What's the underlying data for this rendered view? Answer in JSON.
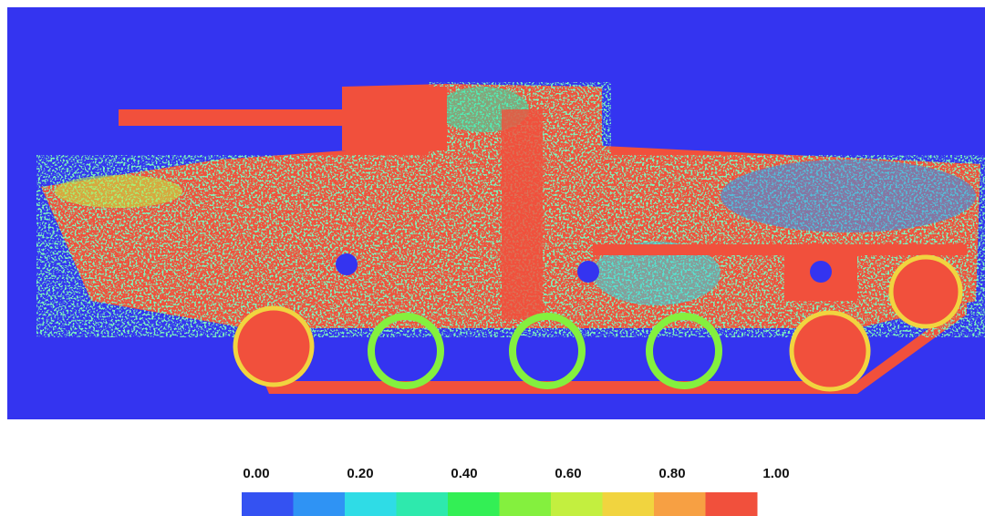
{
  "chart_data": {
    "type": "heatmap",
    "colorbar": {
      "lim": [
        0,
        1
      ],
      "ticks": [
        {
          "value": 0,
          "label": "0.00"
        },
        {
          "value": 0.2,
          "label": "0.20"
        },
        {
          "value": 0.4,
          "label": "0.40"
        },
        {
          "value": 0.6,
          "label": "0.60"
        },
        {
          "value": 0.8,
          "label": "0.80"
        },
        {
          "value": 1,
          "label": "1.00"
        }
      ],
      "colors": [
        "#3452f2",
        "#2f93f4",
        "#2fdce6",
        "#2ee9ad",
        "#33ef55",
        "#84f03e",
        "#c3ef3f",
        "#f1d43f",
        "#f7a043",
        "#f1503c"
      ]
    }
  }
}
